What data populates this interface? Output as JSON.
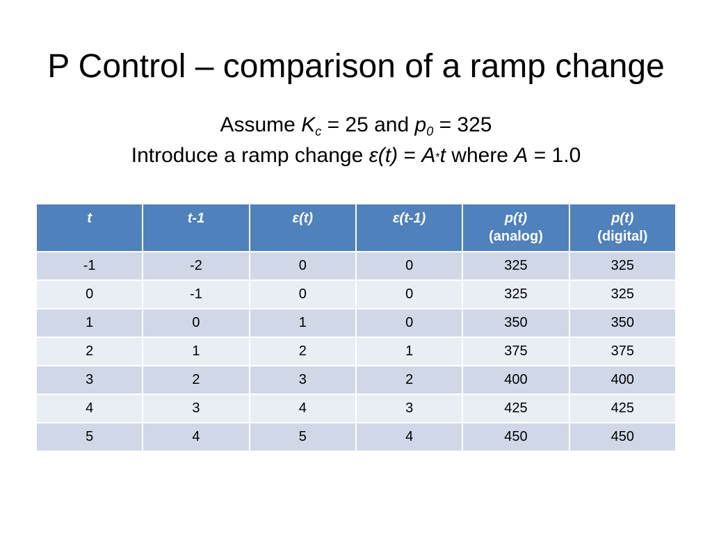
{
  "slide": {
    "title": "P Control – comparison of a ramp change",
    "assumption": {
      "assume_word": "Assume",
      "K": "K",
      "K_sub": "c",
      "kc_eq": "= 25 and",
      "p": "p",
      "p_sub": "0",
      "p0_eq": "= 325"
    },
    "ramp": {
      "intro": "Introduce a ramp change",
      "epsilon": "ε(t)",
      "equals": "=",
      "A": "A",
      "star": "*",
      "t": "t",
      "where": "where",
      "A2": "A",
      "tail": "= 1.0"
    }
  },
  "table": {
    "headers": [
      {
        "line1": "t",
        "line2": ""
      },
      {
        "line1": "t-1",
        "line2": ""
      },
      {
        "line1": "ε(t)",
        "line2": ""
      },
      {
        "line1": "ε(t-1)",
        "line2": ""
      },
      {
        "line1": "p(t)",
        "line2": "(analog)"
      },
      {
        "line1": "p(t)",
        "line2": "(digital)"
      }
    ],
    "rows": [
      [
        "-1",
        "-2",
        "0",
        "0",
        "325",
        "325"
      ],
      [
        "0",
        "-1",
        "0",
        "0",
        "325",
        "325"
      ],
      [
        "1",
        "0",
        "1",
        "0",
        "350",
        "350"
      ],
      [
        "2",
        "1",
        "2",
        "1",
        "375",
        "375"
      ],
      [
        "3",
        "2",
        "3",
        "2",
        "400",
        "400"
      ],
      [
        "4",
        "3",
        "4",
        "3",
        "425",
        "425"
      ],
      [
        "5",
        "4",
        "5",
        "4",
        "450",
        "450"
      ]
    ]
  },
  "colors": {
    "header_bg": "#4f81bd",
    "row_odd_bg": "#d0d8e8",
    "row_even_bg": "#e9edf4"
  }
}
